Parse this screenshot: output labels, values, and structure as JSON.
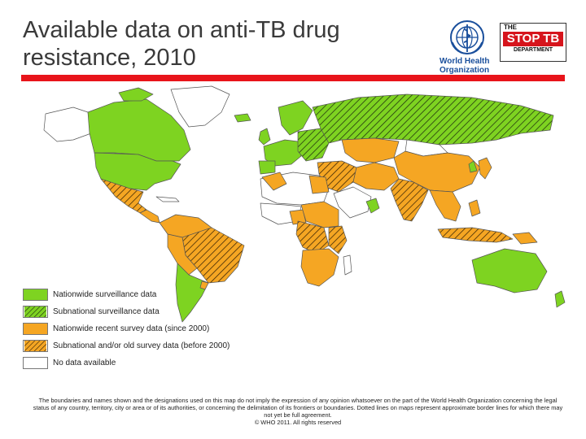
{
  "header": {
    "title": "Available data on anti-TB drug resistance, 2010",
    "who_logo_lines": [
      "World Health",
      "Organization"
    ],
    "stoptb_lines": [
      "THE",
      "STOP TB",
      "DEPARTMENT"
    ]
  },
  "colors": {
    "accent_bar": "#e8141a",
    "nationwide_surveillance": "#7ed321",
    "nationwide_survey": "#f5a623",
    "no_data": "#ffffff",
    "water": "#ffffff",
    "land_outline": "#555555"
  },
  "legend": [
    {
      "label": "Nationwide surveillance data",
      "color": "#7ed321",
      "hatched": false
    },
    {
      "label": "Subnational surveillance data",
      "color": "#7ed321",
      "hatched": true
    },
    {
      "label": "Nationwide recent survey data (since 2000)",
      "color": "#f5a623",
      "hatched": false
    },
    {
      "label": "Subnational and/or old survey data (before 2000)",
      "color": "#f5a623",
      "hatched": true
    },
    {
      "label": "No data available",
      "color": "#ffffff",
      "hatched": false
    }
  ],
  "disclaimer": {
    "text": "The boundaries and names shown and the designations used on this map do not imply the expression of any opinion whatsoever on the part of the World Health Organization concerning the legal status of any country, territory, city or area or of its authorities, or concerning the delimitation of its frontiers or boundaries. Dotted lines on maps represent approximate border lines for which there may not yet be full agreement.",
    "copyright": "© WHO 2011. All rights reserved"
  }
}
